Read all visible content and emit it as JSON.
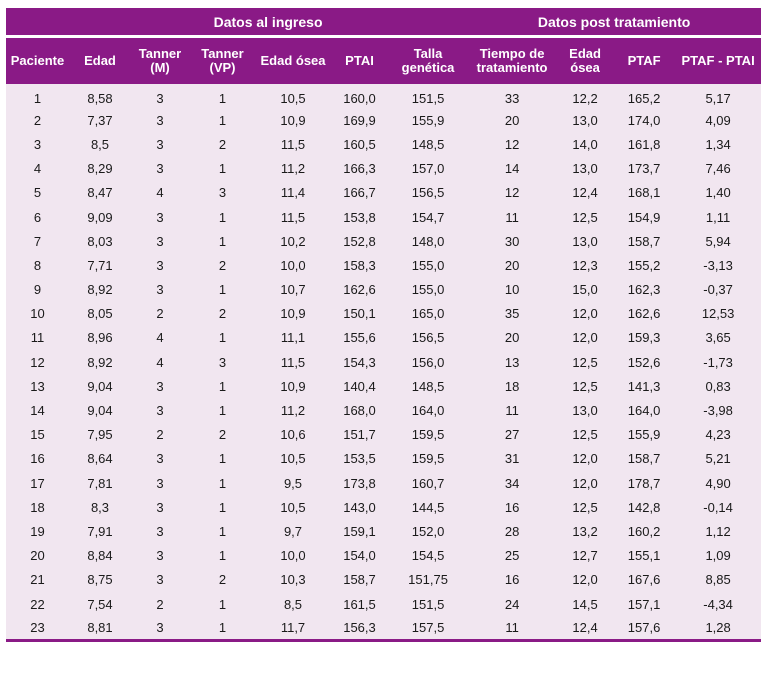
{
  "header": {
    "group_ingreso": "Datos al ingreso",
    "group_post": "Datos post tratamiento",
    "columns": [
      "Paciente",
      "Edad",
      "Tanner (M)",
      "Tanner (VP)",
      "Edad ósea",
      "PTAI",
      "Talla genética",
      "Tiempo de tratamiento",
      "Edad ósea",
      "PTAF",
      "PTAF - PTAI"
    ]
  },
  "rows": [
    [
      "1",
      "8,58",
      "3",
      "1",
      "10,5",
      "160,0",
      "151,5",
      "33",
      "12,2",
      "165,2",
      "5,17"
    ],
    [
      "2",
      "7,37",
      "3",
      "1",
      "10,9",
      "169,9",
      "155,9",
      "20",
      "13,0",
      "174,0",
      "4,09"
    ],
    [
      "3",
      "8,5",
      "3",
      "2",
      "11,5",
      "160,5",
      "148,5",
      "12",
      "14,0",
      "161,8",
      "1,34"
    ],
    [
      "4",
      "8,29",
      "3",
      "1",
      "11,2",
      "166,3",
      "157,0",
      "14",
      "13,0",
      "173,7",
      "7,46"
    ],
    [
      "5",
      "8,47",
      "4",
      "3",
      "11,4",
      "166,7",
      "156,5",
      "12",
      "12,4",
      "168,1",
      "1,40"
    ],
    [
      "6",
      "9,09",
      "3",
      "1",
      "11,5",
      "153,8",
      "154,7",
      "11",
      "12,5",
      "154,9",
      "1,11"
    ],
    [
      "7",
      "8,03",
      "3",
      "1",
      "10,2",
      "152,8",
      "148,0",
      "30",
      "13,0",
      "158,7",
      "5,94"
    ],
    [
      "8",
      "7,71",
      "3",
      "2",
      "10,0",
      "158,3",
      "155,0",
      "20",
      "12,3",
      "155,2",
      "-3,13"
    ],
    [
      "9",
      "8,92",
      "3",
      "1",
      "10,7",
      "162,6",
      "155,0",
      "10",
      "15,0",
      "162,3",
      "-0,37"
    ],
    [
      "10",
      "8,05",
      "2",
      "2",
      "10,9",
      "150,1",
      "165,0",
      "35",
      "12,0",
      "162,6",
      "12,53"
    ],
    [
      "11",
      "8,96",
      "4",
      "1",
      "11,1",
      "155,6",
      "156,5",
      "20",
      "12,0",
      "159,3",
      "3,65"
    ],
    [
      "12",
      "8,92",
      "4",
      "3",
      "11,5",
      "154,3",
      "156,0",
      "13",
      "12,5",
      "152,6",
      "-1,73"
    ],
    [
      "13",
      "9,04",
      "3",
      "1",
      "10,9",
      "140,4",
      "148,5",
      "18",
      "12,5",
      "141,3",
      "0,83"
    ],
    [
      "14",
      "9,04",
      "3",
      "1",
      "11,2",
      "168,0",
      "164,0",
      "11",
      "13,0",
      "164,0",
      "-3,98"
    ],
    [
      "15",
      "7,95",
      "2",
      "2",
      "10,6",
      "151,7",
      "159,5",
      "27",
      "12,5",
      "155,9",
      "4,23"
    ],
    [
      "16",
      "8,64",
      "3",
      "1",
      "10,5",
      "153,5",
      "159,5",
      "31",
      "12,0",
      "158,7",
      "5,21"
    ],
    [
      "17",
      "7,81",
      "3",
      "1",
      "9,5",
      "173,8",
      "160,7",
      "34",
      "12,0",
      "178,7",
      "4,90"
    ],
    [
      "18",
      "8,3",
      "3",
      "1",
      "10,5",
      "143,0",
      "144,5",
      "16",
      "12,5",
      "142,8",
      "-0,14"
    ],
    [
      "19",
      "7,91",
      "3",
      "1",
      "9,7",
      "159,1",
      "152,0",
      "28",
      "13,2",
      "160,2",
      "1,12"
    ],
    [
      "20",
      "8,84",
      "3",
      "1",
      "10,0",
      "154,0",
      "154,5",
      "25",
      "12,7",
      "155,1",
      "1,09"
    ],
    [
      "21",
      "8,75",
      "3",
      "2",
      "10,3",
      "158,7",
      "151,75",
      "16",
      "12,0",
      "167,6",
      "8,85"
    ],
    [
      "22",
      "7,54",
      "2",
      "1",
      "8,5",
      "161,5",
      "151,5",
      "24",
      "14,5",
      "157,1",
      "-4,34"
    ],
    [
      "23",
      "8,81",
      "3",
      "1",
      "11,7",
      "156,3",
      "157,5",
      "11",
      "12,4",
      "157,6",
      "1,28"
    ]
  ]
}
